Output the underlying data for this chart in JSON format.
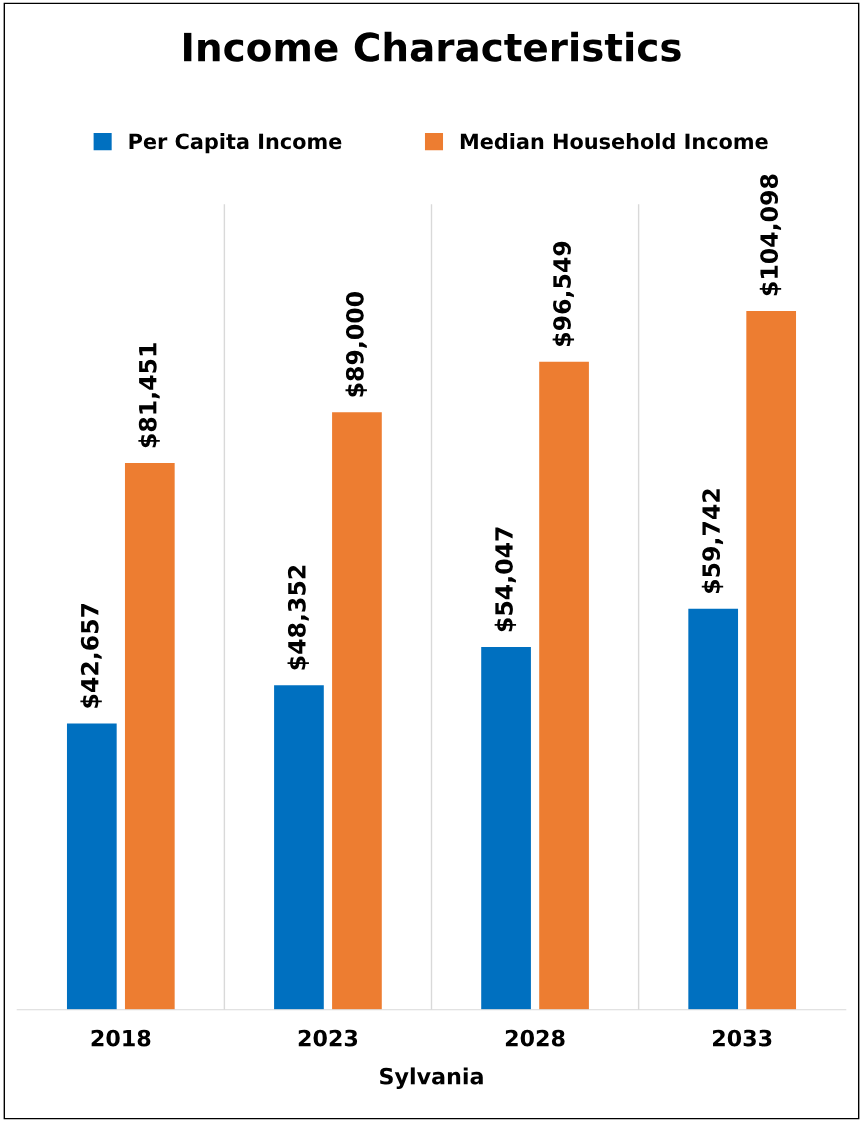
{
  "chart_data": {
    "type": "bar",
    "title": "Income Characteristics",
    "xlabel": "Sylvania",
    "categories": [
      "2018",
      "2023",
      "2028",
      "2033"
    ],
    "series": [
      {
        "name": "Per Capita Income",
        "color": "#0070c0",
        "values": [
          42657,
          48352,
          54047,
          59742
        ],
        "value_labels": [
          "$42,657",
          "$48,352",
          "$54,047",
          "$59,742"
        ]
      },
      {
        "name": "Median Household Income",
        "color": "#ed7d31",
        "values": [
          81451,
          89000,
          96549,
          104098
        ],
        "value_labels": [
          "$81,451",
          "$89,000",
          "$96,549",
          "$104,098"
        ]
      }
    ],
    "ylim": [
      0,
      120000
    ],
    "tick_labels": "x",
    "grid": "x",
    "legend": "top"
  }
}
